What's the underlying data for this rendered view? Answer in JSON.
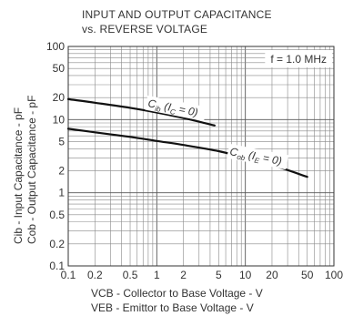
{
  "chart_data": {
    "type": "line",
    "title_lines": [
      "INPUT AND OUTPUT CAPACITANCE",
      "vs. REVERSE VOLTAGE"
    ],
    "xlabel_lines": [
      "VCB - Collector to Base Voltage - V",
      "VEB - Emittor to Base Voltage - V"
    ],
    "ylabel_lines": [
      "Cib - Input Capacitance - pF",
      "Cob - Output Capacitance - pF"
    ],
    "x_scale": "log",
    "y_scale": "log",
    "xlim": [
      0.1,
      100
    ],
    "ylim": [
      0.1,
      100
    ],
    "x_ticks": [
      "0.1",
      "0.2",
      "0.5",
      "1",
      "2",
      "5",
      "10",
      "20",
      "50",
      "100"
    ],
    "y_ticks": [
      "100",
      "50",
      "20",
      "10",
      "5",
      "2",
      "1",
      "0.5",
      "0.2",
      "0.1"
    ],
    "grid": true,
    "annotation": "f = 1.0 MHz",
    "series": [
      {
        "name": "Cib (IC = 0)",
        "x": [
          0.1,
          0.2,
          0.5,
          1,
          2,
          4.5
        ],
        "y": [
          19,
          17,
          14.5,
          12.5,
          10.5,
          8.3
        ]
      },
      {
        "name": "Cob (IE = 0)",
        "x": [
          0.1,
          0.2,
          0.5,
          1,
          2,
          5,
          10,
          20,
          50
        ],
        "y": [
          7.5,
          6.7,
          5.8,
          5.1,
          4.5,
          3.7,
          3.0,
          2.4,
          1.65
        ]
      }
    ]
  }
}
